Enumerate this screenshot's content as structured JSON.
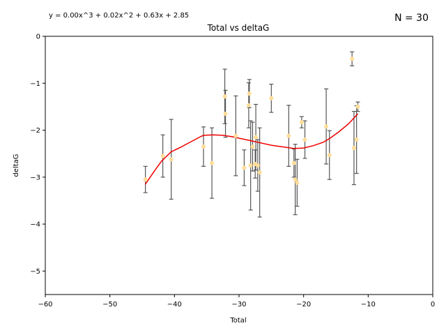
{
  "chart_data": {
    "type": "scatter",
    "title": "Total vs deltaG",
    "xlabel": "Total",
    "ylabel": "deltaG",
    "xlim": [
      -60,
      0
    ],
    "ylim": [
      -5.5,
      0
    ],
    "xticks": [
      -60,
      -50,
      -40,
      -30,
      -20,
      -10,
      0
    ],
    "yticks": [
      0,
      -1,
      -2,
      -3,
      -4,
      -5
    ],
    "xtick_labels": [
      "−60",
      "−50",
      "−40",
      "−30",
      "−20",
      "−10",
      "0"
    ],
    "ytick_labels": [
      "0",
      "−1",
      "−2",
      "−3",
      "−4",
      "−5"
    ],
    "equation": "y = 0.00x^3 + 0.02x^2 + 0.63x + 2.85",
    "n_label": "N = 30",
    "grid": false,
    "colors": {
      "points": "#ffdd99",
      "errorbars": "#555555",
      "fit": "#ee0000"
    },
    "points": [
      {
        "x": -44.5,
        "y": -3.05,
        "err": 0.28
      },
      {
        "x": -41.8,
        "y": -2.55,
        "err": 0.45
      },
      {
        "x": -40.5,
        "y": -2.62,
        "err": 0.85
      },
      {
        "x": -35.5,
        "y": -2.35,
        "err": 0.42
      },
      {
        "x": -34.2,
        "y": -2.7,
        "err": 0.75
      },
      {
        "x": -32.2,
        "y": -1.28,
        "err": 0.58
      },
      {
        "x": -32.1,
        "y": -1.65,
        "err": 0.5
      },
      {
        "x": -30.5,
        "y": -2.12,
        "err": 0.85
      },
      {
        "x": -29.2,
        "y": -2.8,
        "err": 0.38
      },
      {
        "x": -28.5,
        "y": -1.47,
        "err": 0.48
      },
      {
        "x": -28.4,
        "y": -1.22,
        "err": 0.3
      },
      {
        "x": -28.2,
        "y": -2.75,
        "err": 0.95
      },
      {
        "x": -27.9,
        "y": -2.35,
        "err": 0.52
      },
      {
        "x": -27.5,
        "y": -2.72,
        "err": 0.3
      },
      {
        "x": -27.4,
        "y": -2.15,
        "err": 0.7
      },
      {
        "x": -27.1,
        "y": -2.75,
        "err": 0.55
      },
      {
        "x": -26.8,
        "y": -2.9,
        "err": 0.95
      },
      {
        "x": -25.0,
        "y": -1.32,
        "err": 0.3
      },
      {
        "x": -22.3,
        "y": -2.12,
        "err": 0.65
      },
      {
        "x": -21.5,
        "y": -2.7,
        "err": 0.3
      },
      {
        "x": -21.3,
        "y": -3.05,
        "err": 0.75
      },
      {
        "x": -21.0,
        "y": -3.12,
        "err": 0.5
      },
      {
        "x": -20.3,
        "y": -1.83,
        "err": 0.12
      },
      {
        "x": -19.8,
        "y": -2.2,
        "err": 0.4
      },
      {
        "x": -16.5,
        "y": -1.92,
        "err": 0.8
      },
      {
        "x": -16.0,
        "y": -2.53,
        "err": 0.52
      },
      {
        "x": -12.5,
        "y": -0.48,
        "err": 0.15
      },
      {
        "x": -12.2,
        "y": -2.38,
        "err": 0.78
      },
      {
        "x": -11.8,
        "y": -2.2,
        "err": 0.72
      },
      {
        "x": -11.6,
        "y": -1.5,
        "err": 0.1
      }
    ],
    "fit_line": {
      "x": [
        -44.5,
        -43,
        -42,
        -40.5,
        -39,
        -37.5,
        -36,
        -35.5,
        -34,
        -32.5,
        -31,
        -29,
        -27,
        -25,
        -23,
        -21.5,
        -20,
        -18.5,
        -17,
        -16,
        -14.5,
        -13,
        -11.6
      ],
      "y": [
        -3.15,
        -2.85,
        -2.66,
        -2.46,
        -2.36,
        -2.25,
        -2.14,
        -2.11,
        -2.1,
        -2.11,
        -2.14,
        -2.2,
        -2.26,
        -2.32,
        -2.36,
        -2.39,
        -2.38,
        -2.33,
        -2.26,
        -2.18,
        -2.03,
        -1.86,
        -1.65
      ]
    }
  }
}
